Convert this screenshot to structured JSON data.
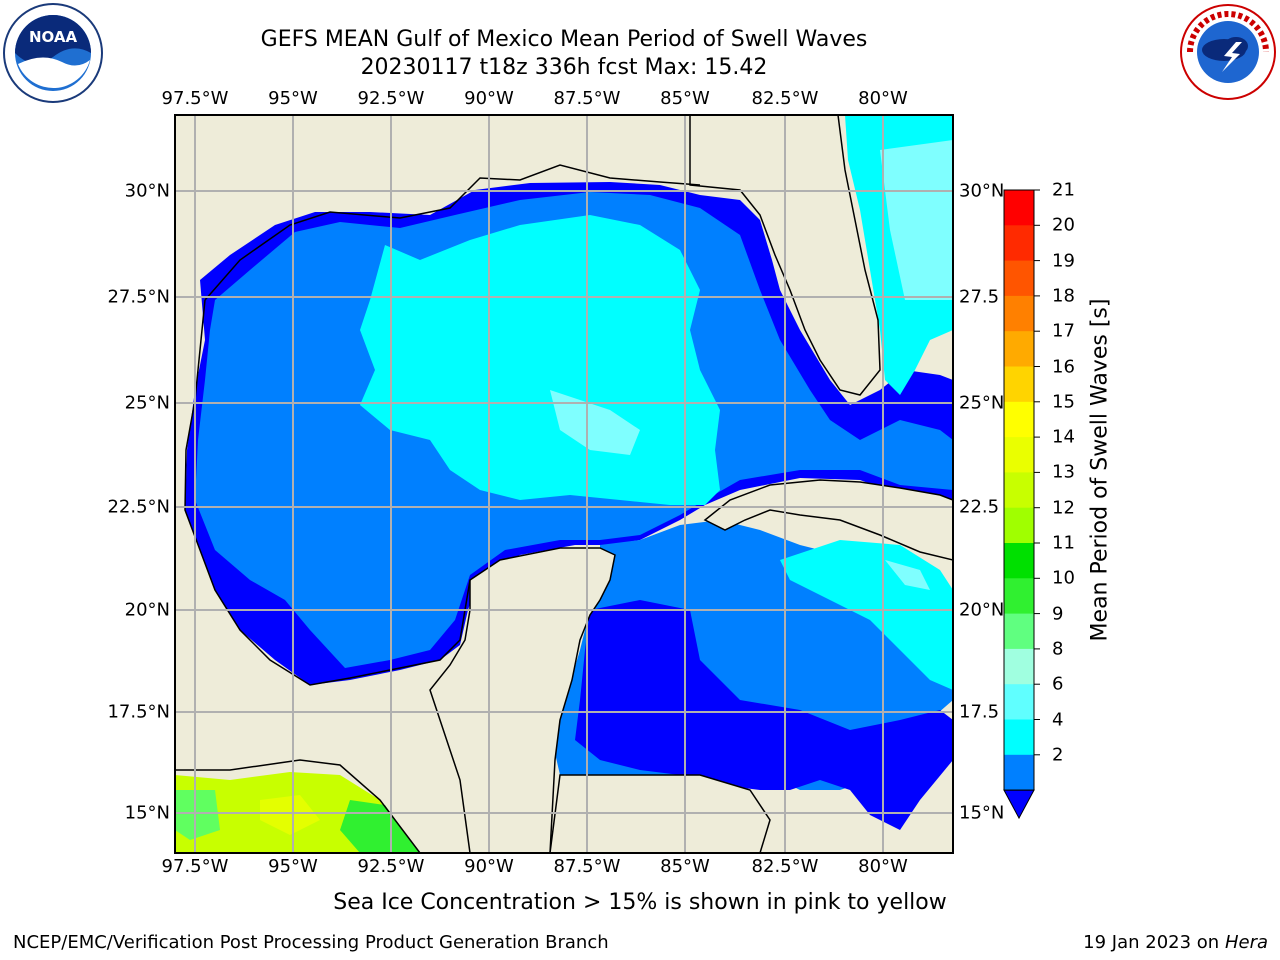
{
  "title": {
    "line1": "GEFS MEAN Gulf of Mexico Mean Period of Swell Waves",
    "line2": "20230117 t18z 336h fcst   Max: 15.42"
  },
  "map": {
    "lon_labels": [
      "97.5°W",
      "95°W",
      "92.5°W",
      "90°W",
      "87.5°W",
      "85°W",
      "82.5°W",
      "80°W"
    ],
    "lat_labels_left": [
      "30°N",
      "27.5°N",
      "25°N",
      "22.5°N",
      "20°N",
      "17.5°N",
      "15°N"
    ],
    "lat_labels_right": [
      "30°N",
      "27.5",
      "25°N",
      "22.5",
      "20°N",
      "17.5",
      "15°N"
    ],
    "land_color": "#eeecd9",
    "gridline_color": "#b0b0b0"
  },
  "colorbar": {
    "label": "Mean Period of Swell Waves [s]",
    "ticks": [
      "21",
      "20",
      "19",
      "18",
      "17",
      "16",
      "15",
      "14",
      "13",
      "12",
      "11",
      "10",
      "9",
      "8",
      "6",
      "4",
      "2"
    ],
    "colors_top_to_bottom": [
      "#ff0000",
      "#ff2a00",
      "#ff5500",
      "#ff8000",
      "#ffaa00",
      "#ffd400",
      "#ffff00",
      "#eaff00",
      "#c8ff00",
      "#a0ff00",
      "#00e000",
      "#30f030",
      "#60ff80",
      "#a0ffe0",
      "#60ffff",
      "#00ffff",
      "#0080ff",
      "#0000ff"
    ]
  },
  "note": "Sea Ice Concentration > 15% is shown in pink to yellow",
  "footer": {
    "left": "NCEP/EMC/Verification Post Processing Product Generation Branch",
    "right_prefix": "19 Jan 2023 on ",
    "right_host": "Hera"
  },
  "logos": {
    "noaa": "NOAA",
    "noaa_ring": "NATIONAL OCEANIC AND ATMOSPHERIC ADMINISTRATION · U.S. DEPARTMENT OF COMMERCE",
    "nws_ring": "NATIONAL WEATHER SERVICE"
  }
}
